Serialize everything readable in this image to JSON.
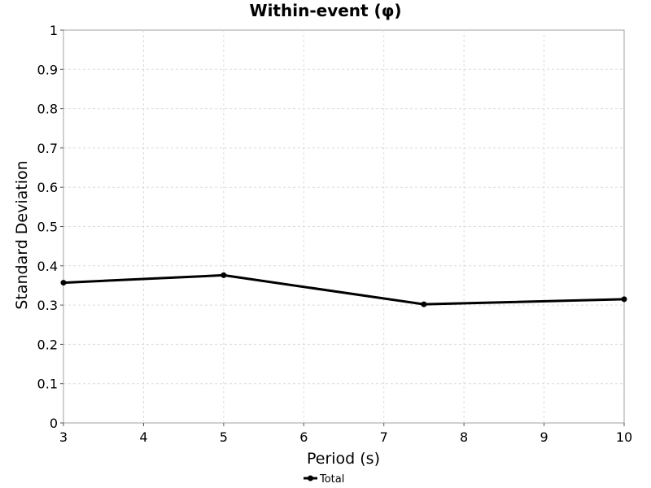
{
  "chart_data": {
    "type": "line",
    "title": "Within-event (φ)",
    "xlabel": "Period (s)",
    "ylabel": "Standard Deviation",
    "xlim": [
      3,
      10
    ],
    "ylim": [
      0,
      1
    ],
    "x_ticks": [
      "3",
      "4",
      "5",
      "6",
      "7",
      "8",
      "9",
      "10"
    ],
    "y_ticks": [
      "0",
      "0.1",
      "0.2",
      "0.3",
      "0.4",
      "0.5",
      "0.6",
      "0.7",
      "0.8",
      "0.9",
      "1"
    ],
    "grid": true,
    "legend_position": "bottom-center",
    "series": [
      {
        "name": "Total",
        "color": "#000000",
        "x": [
          3,
          5,
          7.5,
          10
        ],
        "y": [
          0.357,
          0.376,
          0.302,
          0.315
        ]
      }
    ]
  }
}
